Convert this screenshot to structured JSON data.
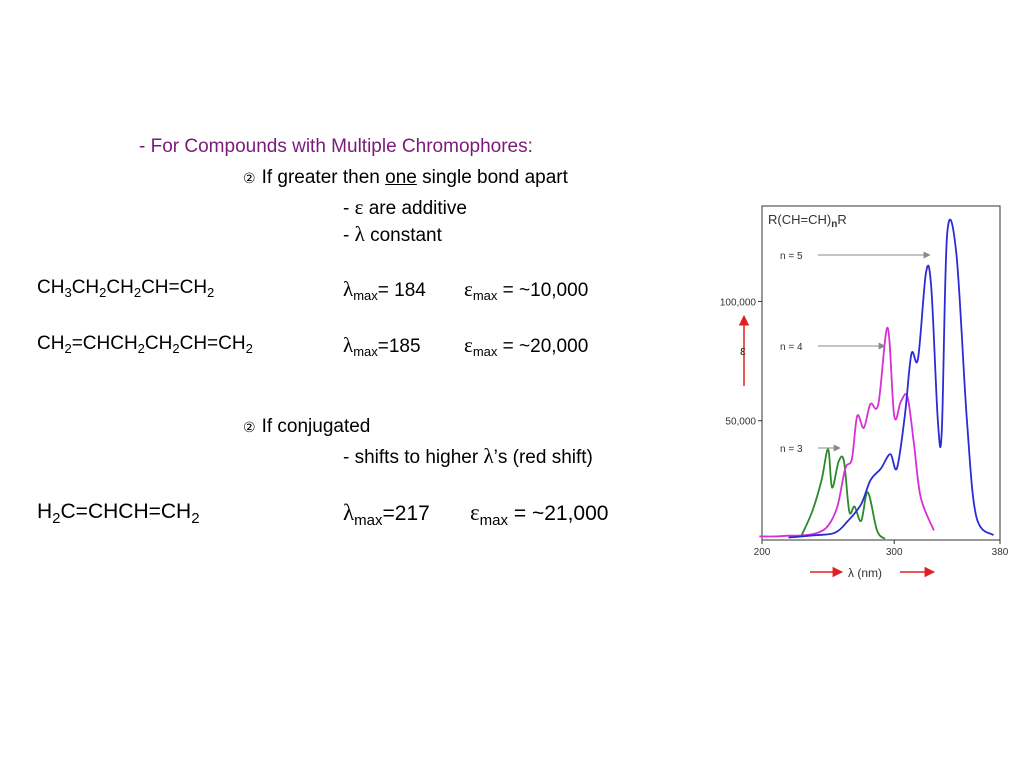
{
  "heading": "- For Compounds with Multiple Chromophores:",
  "rule1": {
    "bullet": "②",
    "pre": "If greater then",
    "underlined": "one",
    "post": "single bond apart",
    "sub_a_dash": "-",
    "sub_a_symbol": "ε",
    "sub_a_text": "are additive",
    "sub_b_dash": "-",
    "sub_b_symbol": "λ",
    "sub_b_text": "constant"
  },
  "compound1": {
    "formula": [
      "CH",
      "3",
      "CH",
      "2",
      "CH",
      "2",
      "CH=CH",
      "2"
    ],
    "lambda_symbol": "λ",
    "lambda_sub": "max",
    "lambda_val": "= 184",
    "eps_symbol": "ε",
    "eps_sub": "max",
    "eps_val": "= ~10,000"
  },
  "compound2": {
    "formula": [
      "CH",
      "2",
      "=CHCH",
      "2",
      "CH",
      "2",
      "CH=CH",
      "2"
    ],
    "lambda_symbol": "λ",
    "lambda_sub": "max",
    "lambda_val": "=185",
    "eps_symbol": "ε",
    "eps_sub": "max",
    "eps_val": "= ~20,000"
  },
  "rule2": {
    "bullet": "②",
    "text": "If conjugated",
    "sub_dash": "- shifts to higher",
    "sub_symbol": "λ",
    "sub_text": "’s (red shift)"
  },
  "compound3": {
    "formula": [
      "H",
      "2",
      "C=CHCH=CH",
      "2"
    ],
    "lambda_symbol": "λ",
    "lambda_sub": "max",
    "lambda_val": "=217",
    "eps_symbol": "ε",
    "eps_sub": "max",
    "eps_val": "= ~21,000"
  },
  "chart_data": {
    "type": "line",
    "title": "R(CH=CH)nR",
    "title_main": "R(CH=CH)",
    "title_sub": "n",
    "title_end": "R",
    "xlabel": "λ (nm)",
    "ylabel": "ε",
    "xlim": [
      200,
      380
    ],
    "ylim": [
      0,
      140000
    ],
    "x_ticks": [
      "200",
      "300",
      "380"
    ],
    "y_ticks": [
      "100,000",
      "50,000"
    ],
    "x_tick_values": [
      200,
      300,
      380
    ],
    "y_tick_values": [
      100000,
      50000
    ],
    "grid": false,
    "arrow_color": "#e02020",
    "series": [
      {
        "name": "n = 3",
        "color": "#2a8a2a",
        "x": [
          230,
          238,
          245,
          250,
          253,
          258,
          262,
          266,
          270,
          275,
          280,
          287,
          293
        ],
        "y": [
          2000,
          12000,
          25000,
          38000,
          22000,
          33000,
          33000,
          12000,
          14000,
          8000,
          20000,
          4000,
          500
        ]
      },
      {
        "name": "n = 4",
        "color": "#d62fd6",
        "x": [
          198,
          210,
          220,
          232,
          242,
          250,
          257,
          263,
          268,
          272,
          277,
          282,
          288,
          295,
          300,
          305,
          310,
          315,
          320,
          330
        ],
        "y": [
          1500,
          1500,
          1800,
          2000,
          3000,
          6000,
          14000,
          30000,
          34000,
          52000,
          47000,
          57000,
          57000,
          89000,
          52000,
          58000,
          60000,
          40000,
          18000,
          4000
        ]
      },
      {
        "name": "n = 5",
        "color": "#2b2bd6",
        "x": [
          220,
          240,
          255,
          265,
          275,
          282,
          290,
          297,
          302,
          308,
          313,
          318,
          324,
          328,
          333,
          336,
          340,
          347,
          355,
          362,
          375
        ],
        "y": [
          1000,
          2000,
          3000,
          8000,
          15000,
          25000,
          30000,
          36000,
          30000,
          52000,
          78000,
          76000,
          112000,
          106000,
          50000,
          46000,
          128000,
          120000,
          50000,
          10000,
          2000
        ]
      }
    ],
    "labels": [
      {
        "text": "n = 5",
        "target_x": 330,
        "target_y": 106000
      },
      {
        "text": "n = 4",
        "target_x": 296,
        "target_y": 86000
      },
      {
        "text": "n = 3",
        "target_x": 262,
        "target_y": 31000
      }
    ]
  }
}
